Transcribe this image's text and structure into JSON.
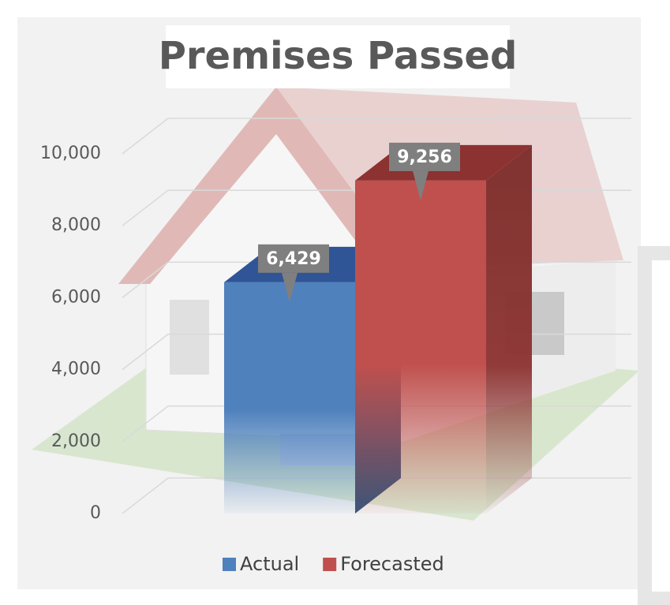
{
  "chart_data": {
    "type": "bar",
    "title": "Premises Passed",
    "categories": [
      null
    ],
    "series": [
      {
        "name": "Actual",
        "color": "#4f81bd",
        "values": [
          6429
        ],
        "value_labels": [
          "6,429"
        ]
      },
      {
        "name": "Forecasted",
        "color": "#c0504d",
        "values": [
          9256
        ],
        "value_labels": [
          "9,256"
        ]
      }
    ],
    "ylim": [
      0,
      10000
    ],
    "yticks": [
      0,
      {
        "value": 2000,
        "label": "2,000"
      },
      {
        "value": 4000,
        "label": "4,000"
      },
      {
        "value": 6000,
        "label": "6,000"
      },
      {
        "value": 8000,
        "label": "8,000"
      },
      {
        "value": 10000,
        "label": "10,000"
      }
    ],
    "grid": true,
    "legend": "bottom"
  }
}
